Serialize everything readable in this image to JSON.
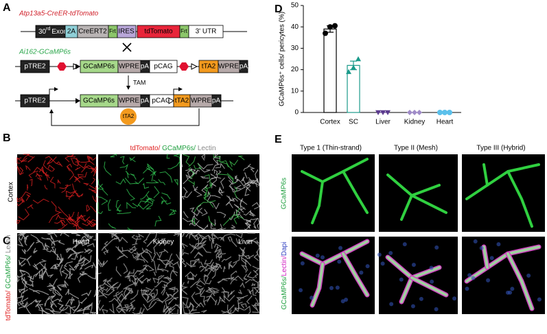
{
  "panel_labels": [
    "A",
    "B",
    "C",
    "D",
    "E"
  ],
  "panel_a": {
    "construct1_name": "Atp13a5-CreER-tdTomato",
    "exon": {
      "number": "30",
      "suffix": "rd",
      "text": "Exon"
    },
    "construct1": [
      "2A",
      "CreERT2",
      "Frt",
      "IRES",
      "tdTomato",
      "Frt",
      "3' UTR"
    ],
    "construct2_name": "Ai162-GCaMP6s",
    "construct2": [
      "pTRE2",
      "GCaMP6s",
      "WPRE",
      "pA",
      "pCAG",
      "tTA2",
      "WPRE",
      "pA"
    ],
    "arrow_label": "TAM",
    "construct3": [
      "pTRE2",
      "GCaMP6s",
      "WPRE",
      "pA",
      "pCAG",
      "tTA2",
      "WPRE",
      "pA"
    ],
    "protein": "tTA2"
  },
  "panel_b": {
    "stains": [
      "tdTomato/ ",
      "GCaMP6s/ ",
      "Lectin"
    ],
    "row_label": "Cortex"
  },
  "panel_c": {
    "stains": [
      "tdTomato/ ",
      "GCaMP6s/ ",
      "Lectin"
    ],
    "tissues": [
      "Heart",
      "Kidney",
      "Liver"
    ]
  },
  "panel_e": {
    "columns": [
      "Type 1 (Thin-strand)",
      "Type II (Mesh)",
      "Type III (Hybrid)"
    ],
    "row1": "GCaMP6s",
    "row2": [
      "GCaMP6s/",
      "Lectin/",
      "Dapi"
    ]
  },
  "chart_data": {
    "type": "bar",
    "y_label": "GCaMP6s⁺ cells/ pericytes (%)",
    "categories": [
      "Cortex",
      "SC",
      "Liver",
      "Kidney",
      "Heart"
    ],
    "values": [
      39,
      22,
      0,
      0,
      0
    ],
    "errors": [
      1.5,
      2,
      0,
      0,
      0
    ],
    "points": [
      [
        37,
        40,
        40.5
      ],
      [
        19,
        21,
        25
      ],
      [
        0,
        0,
        0
      ],
      [
        0,
        0,
        0
      ],
      [
        0,
        0,
        0
      ]
    ],
    "colors": [
      "#000000",
      "#1a9a8a",
      "#5b3a8e",
      "#a08cc8",
      "#5bc0eb"
    ],
    "markers": [
      "circle",
      "triangle",
      "triangle-down",
      "diamond",
      "circle"
    ],
    "ylim": [
      0,
      50
    ],
    "yticks": [
      0,
      10,
      20,
      30,
      40,
      50
    ]
  }
}
